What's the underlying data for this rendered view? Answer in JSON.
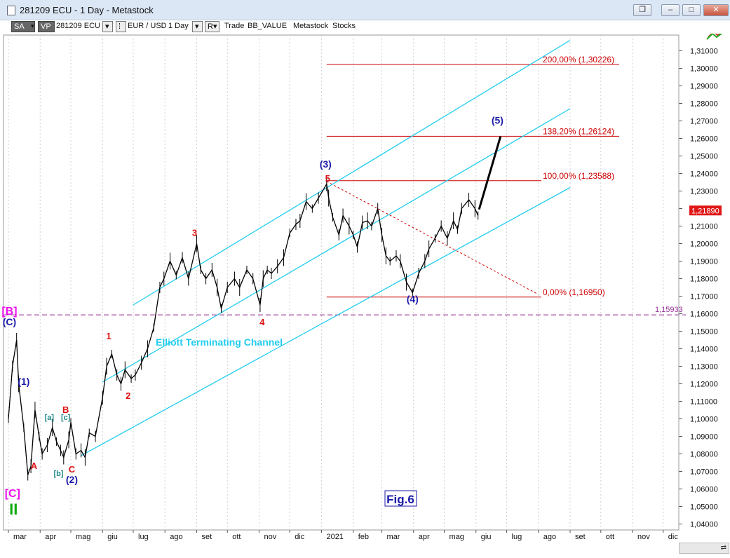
{
  "window": {
    "title": "281209 ECU - 1 Day - Metastock",
    "buttons": [
      "restore-icon",
      "minimize-icon",
      "maximize-icon",
      "close-icon"
    ]
  },
  "toolbar": {
    "sa": "SA",
    "vp": "VP",
    "symbol": "281209 ECU",
    "pair": "EUR / USD",
    "period": "1 Day",
    "r_label": "R▾",
    "trade": "Trade",
    "value": "BB_VALUE",
    "metastock": "Metastock",
    "stocks": "Stocks"
  },
  "chart_data": {
    "type": "line",
    "ylim": [
      1.035,
      1.3185
    ],
    "y_ticks": [
      "1,31000",
      "1,30000",
      "1,29000",
      "1,28000",
      "1,27000",
      "1,26000",
      "1,25000",
      "1,24000",
      "1,23000",
      "1,22000",
      "1,21000",
      "1,20000",
      "1,19000",
      "1,18000",
      "1,17000",
      "1,16000",
      "1,15000",
      "1,14000",
      "1,13000",
      "1,12000",
      "1,11000",
      "1,10000",
      "1,09000",
      "1,08000",
      "1,07000",
      "1,06000",
      "1,05000",
      "1,04000"
    ],
    "x_ticks": [
      "mar",
      "apr",
      "mag",
      "giu",
      "lug",
      "ago",
      "set",
      "ott",
      "nov",
      "dic",
      "2021",
      "feb",
      "mar",
      "apr",
      "mag",
      "giu",
      "lug",
      "ago",
      "set",
      "ott",
      "nov",
      "dic"
    ],
    "price_path": [
      [
        "2020-03-01",
        1.1
      ],
      [
        "2020-03-05",
        1.13
      ],
      [
        "2020-03-09",
        1.145
      ],
      [
        "2020-03-11",
        1.12
      ],
      [
        "2020-03-16",
        1.095
      ],
      [
        "2020-03-20",
        1.068
      ],
      [
        "2020-03-23",
        1.073
      ],
      [
        "2020-03-27",
        1.105
      ],
      [
        "2020-03-31",
        1.09
      ],
      [
        "2020-04-03",
        1.08
      ],
      [
        "2020-04-08",
        1.085
      ],
      [
        "2020-04-13",
        1.095
      ],
      [
        "2020-04-17",
        1.087
      ],
      [
        "2020-04-21",
        1.082
      ],
      [
        "2020-04-24",
        1.078
      ],
      [
        "2020-04-29",
        1.088
      ],
      [
        "2020-05-01",
        1.098
      ],
      [
        "2020-05-06",
        1.08
      ],
      [
        "2020-05-11",
        1.082
      ],
      [
        "2020-05-15",
        1.078
      ],
      [
        "2020-05-19",
        1.092
      ],
      [
        "2020-05-25",
        1.09
      ],
      [
        "2020-06-01",
        1.112
      ],
      [
        "2020-06-05",
        1.13
      ],
      [
        "2020-06-10",
        1.137
      ],
      [
        "2020-06-15",
        1.125
      ],
      [
        "2020-06-19",
        1.12
      ],
      [
        "2020-06-23",
        1.128
      ],
      [
        "2020-06-29",
        1.123
      ],
      [
        "2020-07-03",
        1.125
      ],
      [
        "2020-07-09",
        1.132
      ],
      [
        "2020-07-15",
        1.14
      ],
      [
        "2020-07-21",
        1.152
      ],
      [
        "2020-07-27",
        1.175
      ],
      [
        "2020-07-31",
        1.18
      ],
      [
        "2020-08-06",
        1.19
      ],
      [
        "2020-08-12",
        1.182
      ],
      [
        "2020-08-18",
        1.192
      ],
      [
        "2020-08-24",
        1.18
      ],
      [
        "2020-09-01",
        1.2
      ],
      [
        "2020-09-05",
        1.185
      ],
      [
        "2020-09-10",
        1.18
      ],
      [
        "2020-09-16",
        1.185
      ],
      [
        "2020-09-21",
        1.175
      ],
      [
        "2020-09-25",
        1.163
      ],
      [
        "2020-10-01",
        1.175
      ],
      [
        "2020-10-08",
        1.18
      ],
      [
        "2020-10-13",
        1.175
      ],
      [
        "2020-10-20",
        1.185
      ],
      [
        "2020-10-26",
        1.18
      ],
      [
        "2020-11-02",
        1.165
      ],
      [
        "2020-11-05",
        1.18
      ],
      [
        "2020-11-09",
        1.185
      ],
      [
        "2020-11-13",
        1.183
      ],
      [
        "2020-11-19",
        1.187
      ],
      [
        "2020-11-25",
        1.192
      ],
      [
        "2020-12-01",
        1.206
      ],
      [
        "2020-12-07",
        1.211
      ],
      [
        "2020-12-11",
        1.213
      ],
      [
        "2020-12-17",
        1.224
      ],
      [
        "2020-12-23",
        1.22
      ],
      [
        "2020-12-29",
        1.226
      ],
      [
        "2021-01-06",
        1.234
      ],
      [
        "2021-01-08",
        1.226
      ],
      [
        "2021-01-12",
        1.215
      ],
      [
        "2021-01-18",
        1.205
      ],
      [
        "2021-01-22",
        1.216
      ],
      [
        "2021-01-28",
        1.21
      ],
      [
        "2021-02-01",
        1.205
      ],
      [
        "2021-02-05",
        1.198
      ],
      [
        "2021-02-10",
        1.212
      ],
      [
        "2021-02-15",
        1.213
      ],
      [
        "2021-02-19",
        1.21
      ],
      [
        "2021-02-25",
        1.22
      ],
      [
        "2021-03-01",
        1.205
      ],
      [
        "2021-03-05",
        1.193
      ],
      [
        "2021-03-09",
        1.19
      ],
      [
        "2021-03-15",
        1.193
      ],
      [
        "2021-03-19",
        1.19
      ],
      [
        "2021-03-25",
        1.178
      ],
      [
        "2021-03-31",
        1.172
      ],
      [
        "2021-04-06",
        1.183
      ],
      [
        "2021-04-12",
        1.19
      ],
      [
        "2021-04-16",
        1.197
      ],
      [
        "2021-04-22",
        1.203
      ],
      [
        "2021-04-28",
        1.21
      ],
      [
        "2021-05-04",
        1.203
      ],
      [
        "2021-05-10",
        1.213
      ],
      [
        "2021-05-14",
        1.208
      ],
      [
        "2021-05-18",
        1.22
      ],
      [
        "2021-05-25",
        1.225
      ],
      [
        "2021-05-31",
        1.22
      ],
      [
        "2021-06-03",
        1.216
      ]
    ],
    "current_price": "1,21890",
    "projection_path": [
      [
        "2021-06-04",
        1.2195
      ],
      [
        "2021-06-25",
        1.2612
      ]
    ],
    "fib_levels": [
      {
        "label": "200,00% (1,30226)",
        "value": 1.30226
      },
      {
        "label": "138,20% (1,26124)",
        "value": 1.26124
      },
      {
        "label": "100,00% (1,23588)",
        "value": 1.23588
      },
      {
        "label": "0,00% (1,16950)",
        "value": 1.1695
      }
    ],
    "dashed_level": {
      "label": "1,15933",
      "value": 1.15933
    },
    "fib_retrace_line": [
      [
        "2021-01-06",
        1.2355
      ],
      [
        "2021-08-01",
        1.171
      ]
    ],
    "channel": {
      "label": "Elliott Terminating Channel",
      "lines": [
        [
          [
            "2020-06-01",
            1.121
          ],
          [
            "2021-09-01",
            1.277
          ]
        ],
        [
          [
            "2020-05-11",
            1.079
          ],
          [
            "2021-09-01",
            1.232
          ]
        ],
        [
          [
            "2020-07-01",
            1.165
          ],
          [
            "2021-09-01",
            1.316
          ]
        ]
      ]
    },
    "wave_labels": [
      {
        "text": "[B]",
        "x": "2020-03-02",
        "y": 1.1595,
        "style": "magenta"
      },
      {
        "text": "(C)",
        "x": "2020-03-02",
        "y": 1.1535,
        "style": "navy"
      },
      {
        "text": "(1)",
        "x": "2020-03-16",
        "y": 1.1195,
        "style": "navy"
      },
      {
        "text": "[a]",
        "x": "2020-04-10",
        "y": 1.0995,
        "style": "teal"
      },
      {
        "text": "B",
        "x": "2020-04-26",
        "y": 1.1035,
        "style": "red"
      },
      {
        "text": "[c]",
        "x": "2020-04-26",
        "y": 1.0995,
        "style": "teal"
      },
      {
        "text": "A",
        "x": "2020-03-26",
        "y": 1.0715,
        "style": "red"
      },
      {
        "text": "[b]",
        "x": "2020-04-19",
        "y": 1.0675,
        "style": "teal"
      },
      {
        "text": "C",
        "x": "2020-05-02",
        "y": 1.0695,
        "style": "red"
      },
      {
        "text": "(2)",
        "x": "2020-05-02",
        "y": 1.0635,
        "style": "navy"
      },
      {
        "text": "[C]",
        "x": "2020-03-05",
        "y": 1.0555,
        "style": "magenta"
      },
      {
        "text": "II",
        "x": "2020-03-06",
        "y": 1.0455,
        "style": "green"
      },
      {
        "text": "1",
        "x": "2020-06-07",
        "y": 1.1455,
        "style": "red"
      },
      {
        "text": "2",
        "x": "2020-06-26",
        "y": 1.1115,
        "style": "red"
      },
      {
        "text": "3",
        "x": "2020-08-30",
        "y": 1.2045,
        "style": "red"
      },
      {
        "text": "4",
        "x": "2020-11-04",
        "y": 1.1535,
        "style": "red"
      },
      {
        "text": "(3)",
        "x": "2021-01-05",
        "y": 1.2435,
        "style": "navy"
      },
      {
        "text": "5",
        "x": "2021-01-07",
        "y": 1.2355,
        "style": "red"
      },
      {
        "text": "(4)",
        "x": "2021-03-31",
        "y": 1.1665,
        "style": "navy"
      },
      {
        "text": "(5)",
        "x": "2021-06-22",
        "y": 1.2685,
        "style": "navy"
      }
    ],
    "figure_label": "Fig.6"
  },
  "colors": {
    "channel": "#22ccee",
    "fib": "#cc0000",
    "dashed": "#993399",
    "price": "#000000",
    "navy": "#1a1aaa",
    "red": "#dd1111",
    "magenta": "#ee11ee",
    "teal": "#228888",
    "green": "#11aa11"
  }
}
